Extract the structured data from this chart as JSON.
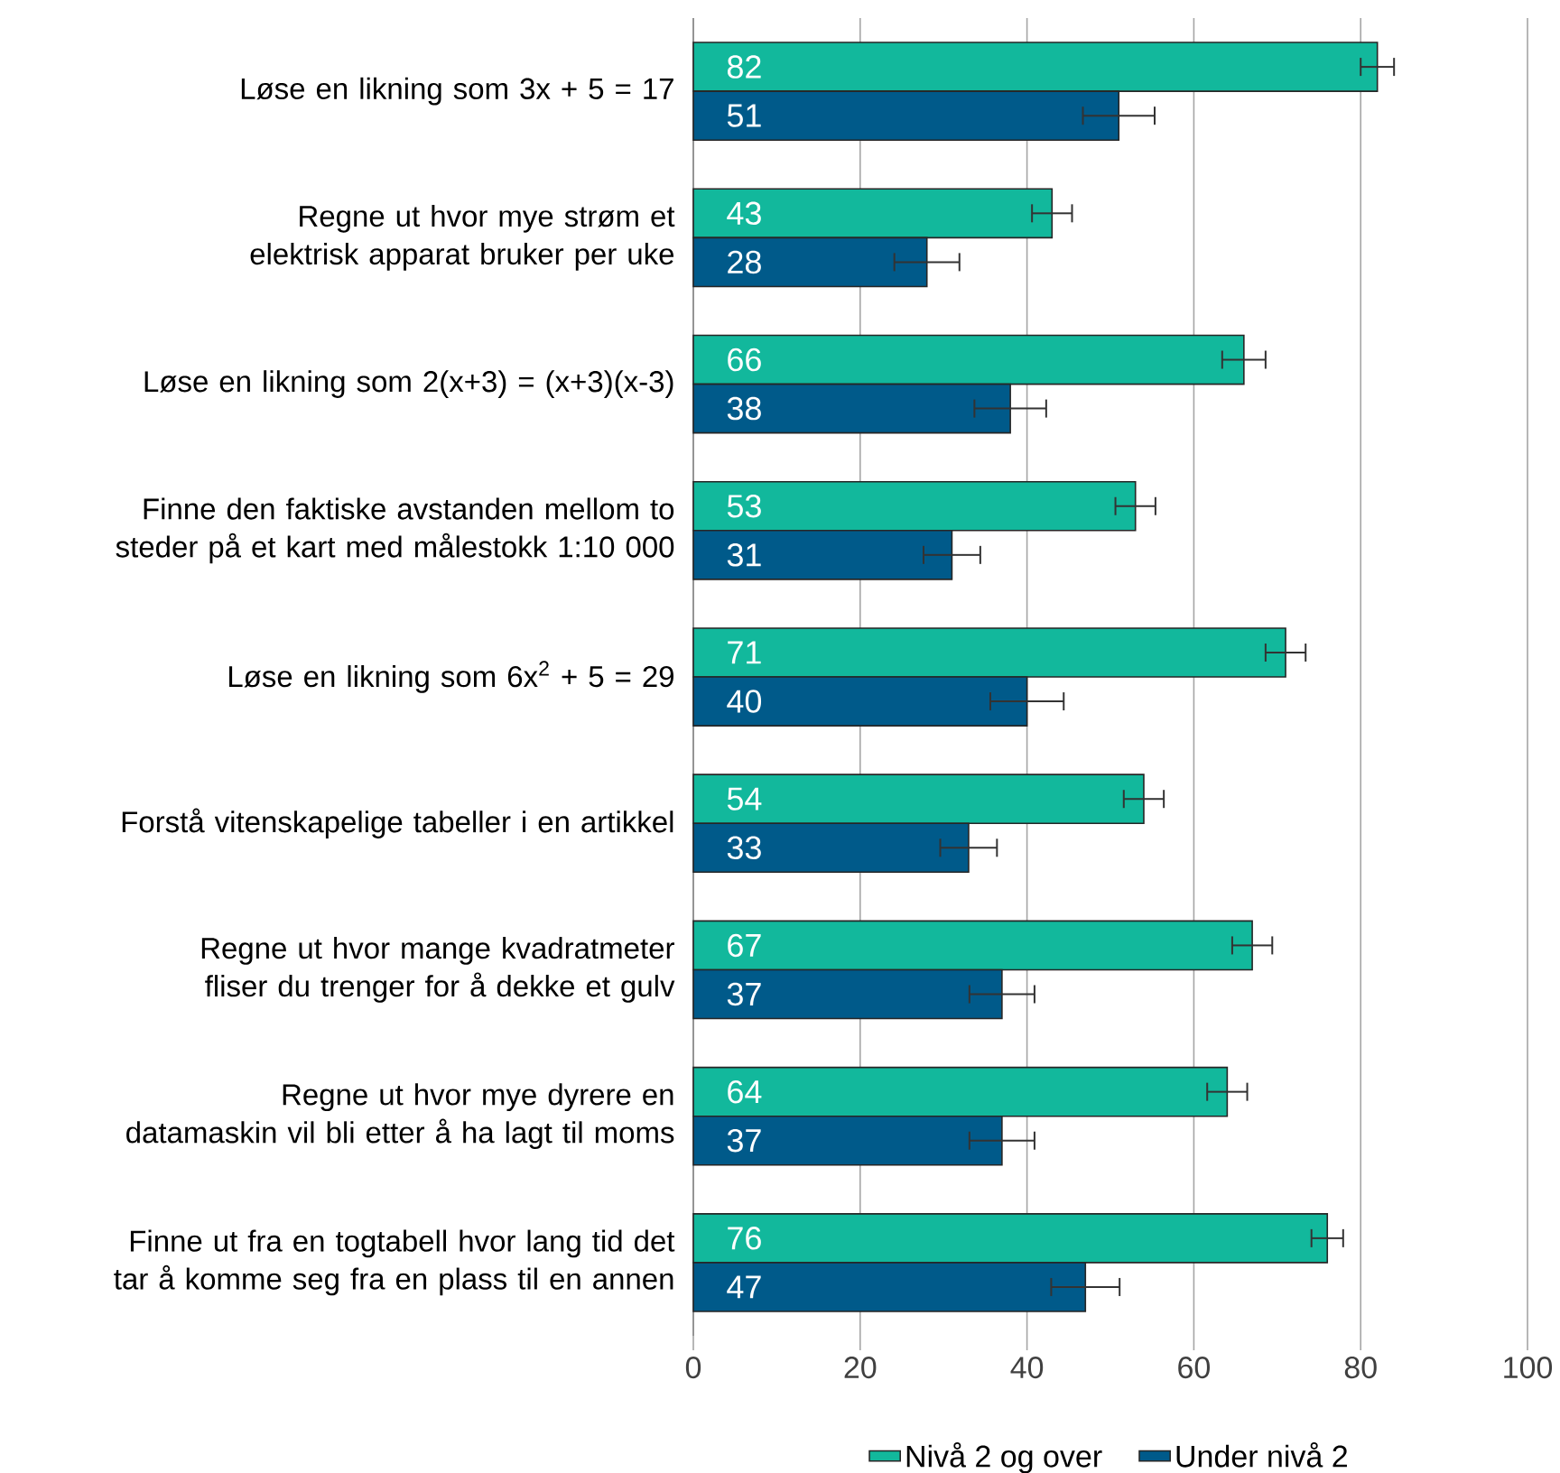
{
  "chart_data": {
    "type": "bar",
    "orientation": "horizontal",
    "categories": [
      "Løse en likning som 3x + 5 = 17",
      "Regne ut hvor mye strøm et elektrisk apparat bruker per uke",
      "Løse en likning som 2(x+3) = (x+3)(x-3)",
      "Finne den faktiske avstanden mellom to steder på et kart med målestokk 1:10 000",
      "Løse en likning som 6x$^{2}$ + 5 = 29",
      "Forstå vitenskapelige tabeller i en artikkel",
      "Regne ut hvor mange kvadratmeter fliser du trenger for å dekke et gulv",
      "Regne ut hvor mye dyrere en datamaskin vil bli etter å ha lagt til moms",
      "Finne ut fra en togtabell hvor lang tid det tar å komme seg fra en plass til en annen"
    ],
    "series": [
      {
        "name": "Nivå 2 og over",
        "color": "#12b89c",
        "values": [
          82,
          43,
          66,
          53,
          71,
          54,
          67,
          64,
          76
        ],
        "errors": [
          2,
          2.4,
          2.6,
          2.4,
          2.4,
          2.4,
          2.4,
          2.4,
          1.9
        ]
      },
      {
        "name": "Under nivå 2",
        "color": "#005a8a",
        "values": [
          51,
          28,
          38,
          31,
          40,
          33,
          37,
          37,
          47
        ],
        "errors": [
          4.3,
          3.9,
          4.3,
          3.4,
          4.4,
          3.4,
          3.9,
          3.9,
          4.1
        ]
      }
    ],
    "xlim": [
      0,
      100
    ],
    "xticks": [
      0,
      20,
      40,
      60,
      80,
      100
    ],
    "grid": "x",
    "legend": "bottom",
    "data_labels": true
  }
}
